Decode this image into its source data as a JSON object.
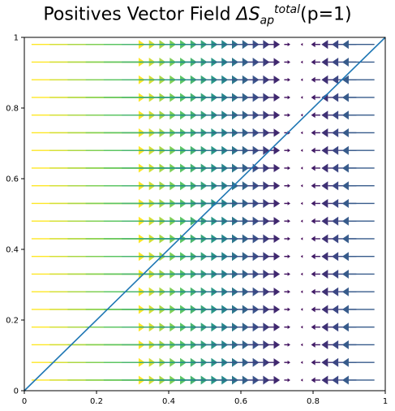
{
  "chart_data": {
    "type": "quiver",
    "title": {
      "prefix": "Positives Vector Field ",
      "symbol": "ΔS",
      "superscript": "total",
      "subscript": "ap",
      "suffix": "(p=1)"
    },
    "xlim": [
      0,
      1
    ],
    "ylim": [
      0,
      1
    ],
    "x_ticks": [
      "0",
      "0.2",
      "0.4",
      "0.6",
      "0.8",
      "1"
    ],
    "y_ticks": [
      "0",
      "0.2",
      "0.4",
      "0.6",
      "0.8",
      "1"
    ],
    "grid": false,
    "legend": "none",
    "vector_field": {
      "description_rule": "u = x0 - x (horizontal only), arrow direction points toward x0",
      "x0": 0.76,
      "x_values": [
        0.02,
        0.07,
        0.12,
        0.17,
        0.22,
        0.27,
        0.32,
        0.37,
        0.42,
        0.47,
        0.52,
        0.57,
        0.62,
        0.67,
        0.72,
        0.77,
        0.82,
        0.87,
        0.92,
        0.97
      ],
      "y_values": [
        0.03,
        0.08,
        0.13,
        0.18,
        0.23,
        0.28,
        0.33,
        0.38,
        0.43,
        0.48,
        0.53,
        0.58,
        0.63,
        0.68,
        0.73,
        0.78,
        0.83,
        0.88,
        0.93,
        0.98
      ],
      "v": 0
    },
    "reference_line": {
      "x": [
        0,
        1
      ],
      "y": [
        0,
        1
      ],
      "color": "#1f77b4"
    },
    "colormap": [
      "#440154",
      "#3b528b",
      "#21918c",
      "#5ec962",
      "#fde725"
    ]
  }
}
